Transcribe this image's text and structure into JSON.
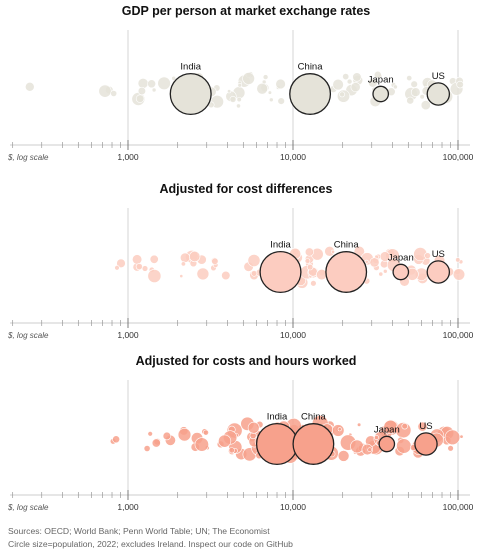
{
  "chart_data": [
    {
      "type": "scatter",
      "title": "GDP per person at market exchange rates",
      "xscale": "log",
      "xlim": [
        100,
        150000
      ],
      "x_ticks": [
        1000,
        10000,
        100000
      ],
      "x_tick_labels": [
        "1,000",
        "10,000",
        "100,000"
      ],
      "xlabel": "$, log scale",
      "highlighted": [
        {
          "name": "India",
          "x": 2400,
          "population_m": 1417
        },
        {
          "name": "China",
          "x": 12700,
          "population_m": 1412
        },
        {
          "name": "Japan",
          "x": 34000,
          "population_m": 125
        },
        {
          "name": "US",
          "x": 76000,
          "population_m": 333
        }
      ]
    },
    {
      "type": "scatter",
      "title": "Adjusted for cost differences",
      "xscale": "log",
      "xlim": [
        100,
        150000
      ],
      "x_ticks": [
        1000,
        10000,
        100000
      ],
      "x_tick_labels": [
        "1,000",
        "10,000",
        "100,000"
      ],
      "xlabel": "$, log scale",
      "highlighted": [
        {
          "name": "India",
          "x": 8400,
          "population_m": 1417
        },
        {
          "name": "China",
          "x": 21000,
          "population_m": 1412
        },
        {
          "name": "Japan",
          "x": 45000,
          "population_m": 125
        },
        {
          "name": "US",
          "x": 76000,
          "population_m": 333
        }
      ]
    },
    {
      "type": "scatter",
      "title": "Adjusted for costs and hours worked",
      "xscale": "log",
      "xlim": [
        100,
        150000
      ],
      "x_ticks": [
        1000,
        10000,
        100000
      ],
      "x_tick_labels": [
        "1,000",
        "10,000",
        "100,000"
      ],
      "xlabel": "$, log scale",
      "highlighted": [
        {
          "name": "India",
          "x": 8000,
          "population_m": 1417
        },
        {
          "name": "China",
          "x": 13300,
          "population_m": 1412
        },
        {
          "name": "Japan",
          "x": 37000,
          "population_m": 125
        },
        {
          "name": "US",
          "x": 64000,
          "population_m": 333
        }
      ]
    }
  ],
  "colors": {
    "panel_fills": [
      "#e5e3d9",
      "#fcccc0",
      "#f7a18c"
    ],
    "highlight_stroke": "#222222",
    "gridline": "#d4d4d4"
  },
  "footer": {
    "sources": "Sources: OECD; World Bank; Penn World Table; UN; The Economist",
    "note": "Circle size=population, 2022; excludes Ireland. Inspect our code on GitHub"
  }
}
